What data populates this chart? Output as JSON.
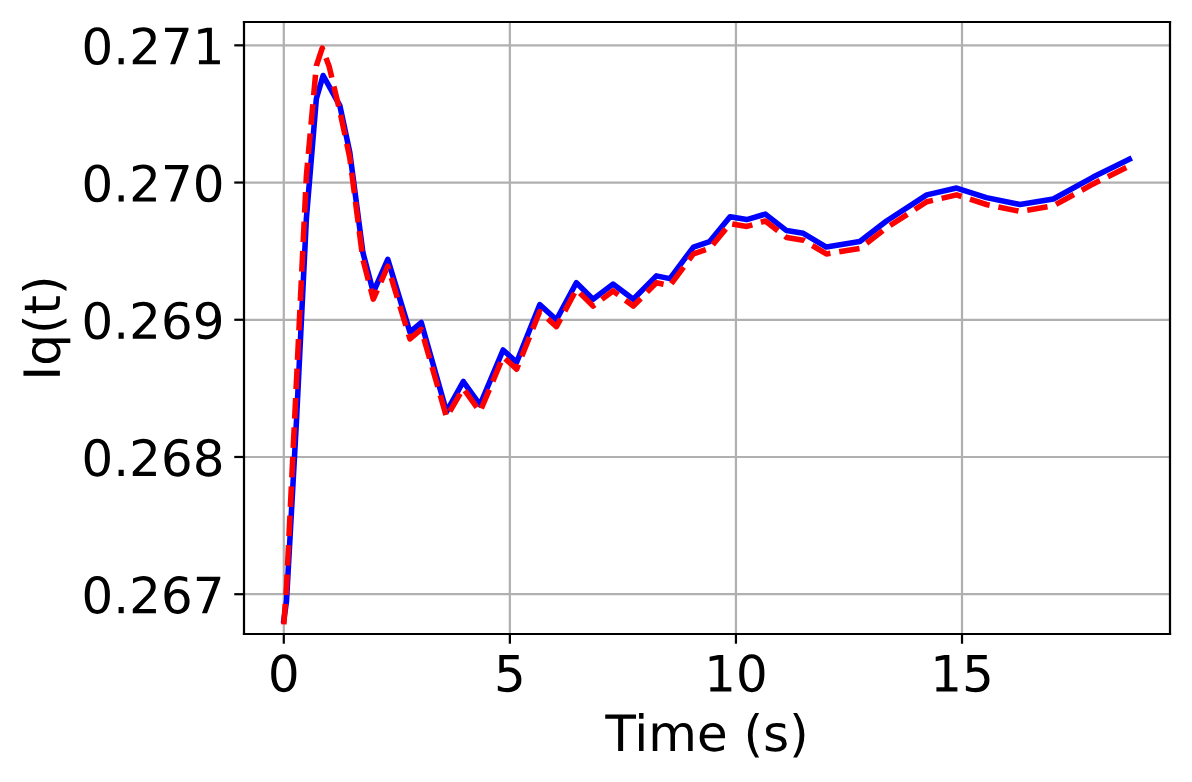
{
  "chart_data": {
    "type": "line",
    "xlabel": "Time (s)",
    "ylabel": "Iq(t)",
    "xlim": [
      -0.88,
      19.6
    ],
    "ylim": [
      0.26671,
      0.27117
    ],
    "xticks": [
      0,
      5,
      10,
      15
    ],
    "yticks": [
      0.267,
      0.268,
      0.269,
      {
        "value": 0.27,
        "label": "0.270"
      },
      0.271
    ],
    "grid": true,
    "legend": false,
    "series": [
      {
        "color": "#0000ff",
        "line_style": "solid",
        "x": [
          0,
          0.06,
          0.28,
          0.5,
          0.72,
          0.87,
          1.24,
          1.46,
          1.75,
          1.98,
          2.3,
          2.79,
          3.04,
          3.6,
          3.97,
          4.34,
          4.85,
          5.15,
          5.66,
          6.03,
          6.47,
          6.84,
          7.28,
          7.73,
          8.24,
          8.54,
          9.06,
          9.42,
          9.87,
          10.24,
          10.65,
          11.12,
          11.49,
          12.0,
          12.74,
          13.33,
          14.22,
          14.88,
          15.54,
          16.28,
          17.02,
          17.9,
          18.7
        ],
        "values": [
          0.26681,
          0.26695,
          0.26826,
          0.26974,
          0.27061,
          0.27078,
          0.27056,
          0.27022,
          0.26949,
          0.2692,
          0.26944,
          0.26891,
          0.26898,
          0.26833,
          0.26855,
          0.26838,
          0.26878,
          0.26869,
          0.26911,
          0.269,
          0.26927,
          0.26915,
          0.26926,
          0.26915,
          0.26932,
          0.2693,
          0.26953,
          0.26957,
          0.26975,
          0.26973,
          0.26977,
          0.26965,
          0.26963,
          0.26953,
          0.26957,
          0.26972,
          0.26991,
          0.26996,
          0.26989,
          0.26984,
          0.26988,
          0.27004,
          0.27017
        ]
      },
      {
        "color": "#ff0000",
        "line_style": "dashed",
        "x": [
          0,
          0.06,
          0.28,
          0.5,
          0.72,
          0.85,
          1.0,
          1.24,
          1.46,
          1.75,
          1.98,
          2.3,
          2.79,
          3.04,
          3.6,
          3.97,
          4.34,
          4.85,
          5.15,
          5.66,
          6.03,
          6.47,
          6.84,
          7.28,
          7.73,
          8.24,
          8.54,
          9.06,
          9.42,
          9.87,
          10.24,
          10.65,
          11.12,
          11.49,
          12.0,
          12.74,
          13.33,
          14.22,
          14.88,
          15.54,
          16.28,
          17.02,
          17.9,
          18.7
        ],
        "values": [
          0.26678,
          0.26705,
          0.26855,
          0.27005,
          0.27085,
          0.27098,
          0.27085,
          0.27052,
          0.27018,
          0.26944,
          0.26915,
          0.26939,
          0.26886,
          0.26893,
          0.26829,
          0.2685,
          0.26833,
          0.26873,
          0.26864,
          0.26906,
          0.26895,
          0.26922,
          0.2691,
          0.26921,
          0.2691,
          0.26927,
          0.26925,
          0.26948,
          0.26952,
          0.2697,
          0.26968,
          0.26972,
          0.2696,
          0.26958,
          0.26948,
          0.26952,
          0.26967,
          0.26986,
          0.26991,
          0.26984,
          0.26979,
          0.26983,
          0.26999,
          0.27012
        ]
      }
    ]
  }
}
